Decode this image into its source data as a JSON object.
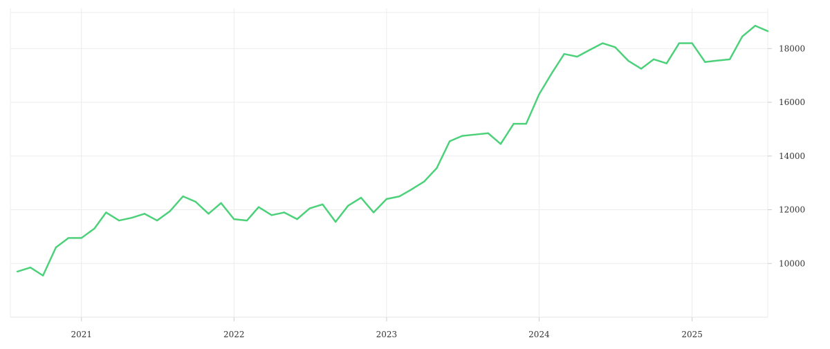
{
  "chart_data": {
    "type": "line",
    "title": "",
    "xlabel": "",
    "ylabel": "",
    "x_range": [
      "2020-07-15",
      "2025-07-01"
    ],
    "ylim": [
      8000,
      19500
    ],
    "x_ticks": [
      "2021",
      "2022",
      "2023",
      "2024",
      "2025"
    ],
    "y_ticks": [
      "10000",
      "12000",
      "14000",
      "16000",
      "18000"
    ],
    "y_axis_position": "right",
    "grid": true,
    "legend": "none",
    "series": [
      {
        "color": "#4cd17a",
        "x": [
          "2020-08-01",
          "2020-09-01",
          "2020-10-01",
          "2020-11-01",
          "2020-12-01",
          "2021-01-01",
          "2021-02-01",
          "2021-03-01",
          "2021-04-01",
          "2021-05-01",
          "2021-06-01",
          "2021-07-01",
          "2021-08-01",
          "2021-09-01",
          "2021-10-01",
          "2021-11-01",
          "2021-12-01",
          "2022-01-01",
          "2022-02-01",
          "2022-03-01",
          "2022-04-01",
          "2022-05-01",
          "2022-06-01",
          "2022-07-01",
          "2022-08-01",
          "2022-09-01",
          "2022-10-01",
          "2022-11-01",
          "2022-12-01",
          "2023-01-01",
          "2023-02-01",
          "2023-03-01",
          "2023-04-01",
          "2023-05-01",
          "2023-06-01",
          "2023-07-01",
          "2023-08-01",
          "2023-09-01",
          "2023-10-01",
          "2023-11-01",
          "2023-12-01",
          "2024-01-01",
          "2024-02-01",
          "2024-03-01",
          "2024-04-01",
          "2024-05-01",
          "2024-06-01",
          "2024-07-01",
          "2024-08-01",
          "2024-09-01",
          "2024-10-01",
          "2024-11-01",
          "2024-12-01",
          "2025-01-01",
          "2025-02-01",
          "2025-03-01",
          "2025-04-01",
          "2025-05-01",
          "2025-06-01",
          "2025-07-01"
        ],
        "values": [
          9700,
          9850,
          9550,
          10600,
          10950,
          10950,
          11300,
          11900,
          11600,
          11700,
          11850,
          11600,
          11950,
          12500,
          12300,
          11850,
          12250,
          11650,
          11600,
          12100,
          11800,
          11900,
          11650,
          12050,
          12200,
          11550,
          12150,
          12450,
          11900,
          12400,
          12500,
          12750,
          13050,
          13550,
          14550,
          14750,
          14800,
          14850,
          14450,
          15200,
          15200,
          16300,
          17100,
          17800,
          17700,
          17950,
          18200,
          18050,
          17550,
          17250,
          17600,
          17450,
          18200,
          18200,
          17500,
          17550,
          17600,
          18450,
          18850,
          18650
        ]
      }
    ]
  }
}
